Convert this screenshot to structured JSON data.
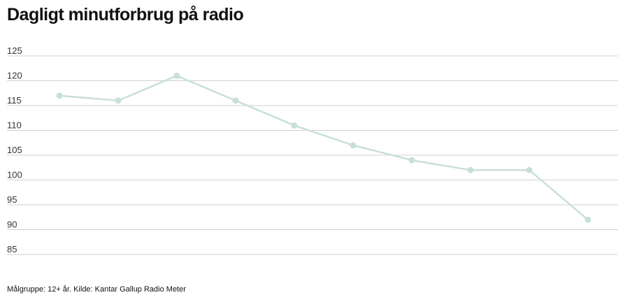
{
  "chart_data": {
    "type": "line",
    "title": "Dagligt minutforbrug på radio",
    "xlabel": "",
    "ylabel": "",
    "ylim": [
      85,
      125
    ],
    "yticks": [
      125,
      120,
      115,
      110,
      105,
      100,
      95,
      90,
      85
    ],
    "grid": true,
    "legend": "none",
    "series": [
      {
        "values": [
          117,
          116,
          121,
          116,
          111,
          107,
          104,
          102,
          102,
          92
        ],
        "color": "#c8e0d7"
      }
    ],
    "footnote": "Målgruppe: 12+ år. Kilde: Kantar Gallup Radio Meter"
  },
  "colors": {
    "grid": "#d0d0d0",
    "line": "#c8e0d7",
    "text": "#111111"
  }
}
